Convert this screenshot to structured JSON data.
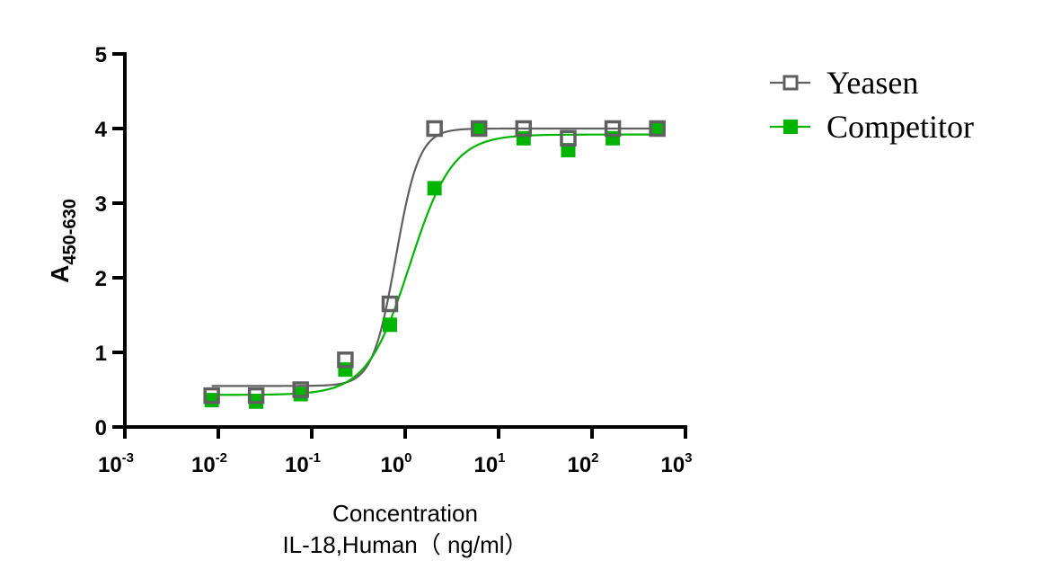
{
  "chart_data": {
    "type": "line",
    "title": "",
    "xlabel": "Concentration",
    "xlabel_line2": "IL-18,Human（ ng/ml）",
    "ylabel_main": "A",
    "ylabel_sub": "450-630",
    "xscale": "log",
    "xlim": [
      0.001,
      1000
    ],
    "ylim": [
      0,
      5
    ],
    "grid": false,
    "legend_position": "top-right outside",
    "x_ticks": [
      {
        "base": "10",
        "exp": "-3",
        "value": 0.001
      },
      {
        "base": "10",
        "exp": "-2",
        "value": 0.01
      },
      {
        "base": "10",
        "exp": "-1",
        "value": 0.1
      },
      {
        "base": "10",
        "exp": "0",
        "value": 1
      },
      {
        "base": "10",
        "exp": "1",
        "value": 10
      },
      {
        "base": "10",
        "exp": "2",
        "value": 100
      },
      {
        "base": "10",
        "exp": "3",
        "value": 1000
      }
    ],
    "y_ticks": [
      "0",
      "1",
      "2",
      "3",
      "4",
      "5"
    ],
    "x": [
      0.0085,
      0.0254,
      0.0762,
      0.229,
      0.686,
      2.06,
      6.17,
      18.5,
      55.6,
      166.7,
      500
    ],
    "series": [
      {
        "name": "Yeasen",
        "color": "#606060",
        "marker": "open-square",
        "values": [
          0.42,
          0.42,
          0.5,
          0.9,
          1.65,
          4.0,
          4.0,
          4.0,
          3.87,
          4.0,
          4.0
        ],
        "fit": {
          "model": "4PL",
          "bottom": 0.55,
          "top": 4.0,
          "log_ec50": -0.1,
          "hill": 3.5
        }
      },
      {
        "name": "Competitor",
        "color": "#00b400",
        "marker": "filled-square",
        "values": [
          0.36,
          0.34,
          0.44,
          0.77,
          1.37,
          3.2,
          4.0,
          3.87,
          3.71,
          3.87,
          4.0
        ],
        "fit": {
          "model": "4PL",
          "bottom": 0.43,
          "top": 3.92,
          "log_ec50": 0.05,
          "hill": 1.9
        }
      }
    ]
  }
}
